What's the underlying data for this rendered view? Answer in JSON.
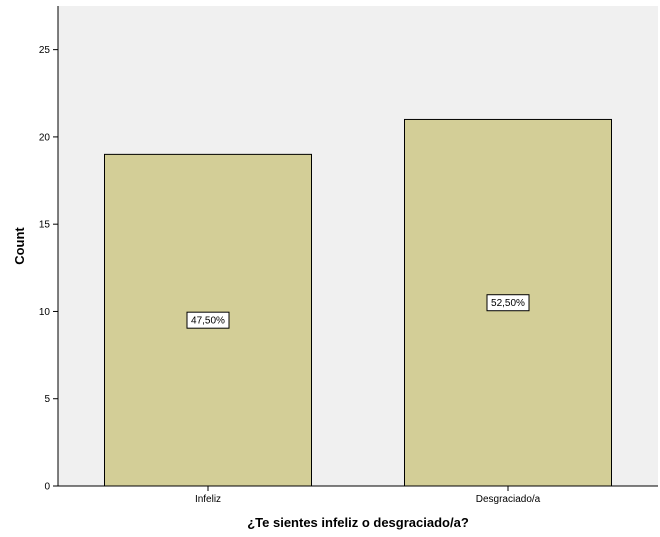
{
  "chart_data": {
    "type": "bar",
    "title": "",
    "xlabel": "¿Te sientes infeliz o desgraciado/a?",
    "ylabel": "Count",
    "categories": [
      "Infeliz",
      "Desgraciado/a"
    ],
    "values": [
      19,
      21
    ],
    "data_labels": [
      "47,50%",
      "52,50%"
    ],
    "ylim": [
      0,
      27.5
    ],
    "yticks": [
      0,
      5,
      10,
      15,
      20,
      25
    ],
    "ytick_labels": [
      "0",
      "5",
      "10",
      "15",
      "20",
      "25"
    ],
    "grid": false,
    "legend": "none",
    "colors": {
      "plot_background": "#f0f0f0",
      "bar_fill": "#d3ce97",
      "bar_stroke": "#000000"
    }
  }
}
